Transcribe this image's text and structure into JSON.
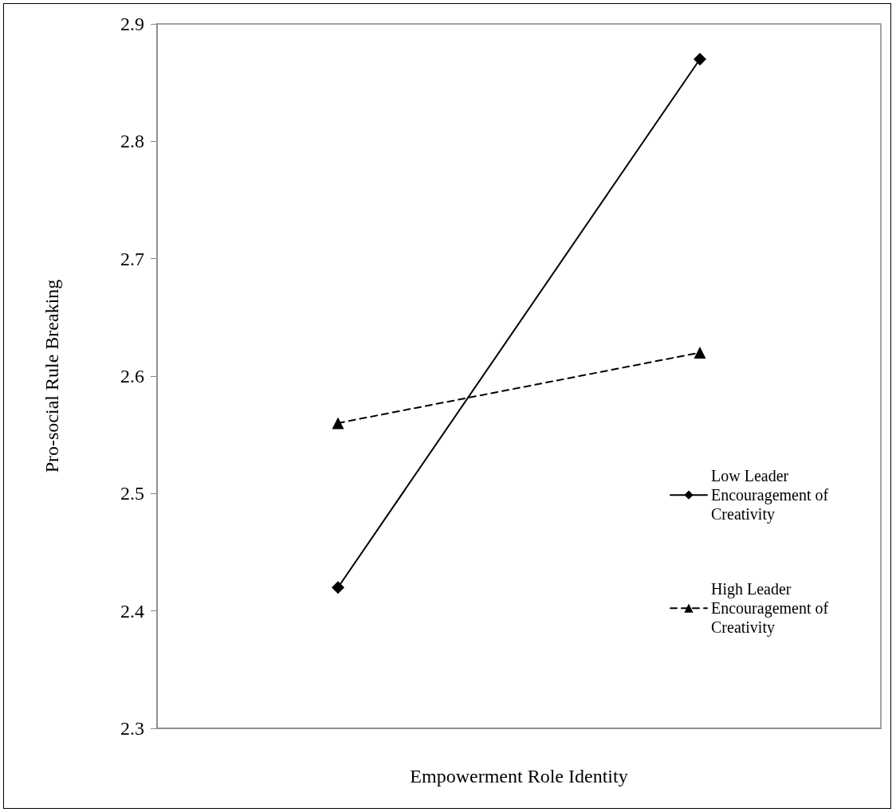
{
  "chart_data": {
    "type": "line",
    "xlabel": "Empowerment Role Identity",
    "ylabel": "Pro-social Rule Breaking",
    "categories": [
      null,
      null
    ],
    "series": [
      {
        "name": "Low Leader Encouragement of Creativity",
        "color": "#000000",
        "values": [
          2.42,
          2.87
        ],
        "marker": "diamond",
        "line_style": "solid"
      },
      {
        "name": "High Leader Encouragement of Creativity",
        "color": "#000000",
        "values": [
          2.56,
          2.62
        ],
        "marker": "triangle",
        "line_style": "dashed"
      }
    ],
    "ylim": [
      2.3,
      2.9
    ],
    "yticks": [
      2.3,
      2.4,
      2.5,
      2.6,
      2.7,
      2.8,
      2.9
    ],
    "grid": false,
    "legend": "right"
  }
}
